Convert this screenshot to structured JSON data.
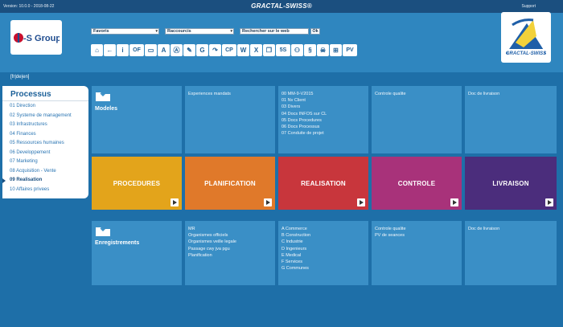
{
  "topbar": {
    "version": "Version: 10.0.0 - 2018-08-22",
    "brand": "GRACTAL-SWISS®",
    "support": "Support"
  },
  "header": {
    "logo_left": "G-S Group",
    "logo_right": "GRACTAL-SWISS",
    "favoris": "Favoris",
    "raccourcis": "Raccourcis",
    "search_placeholder": "Rechercher sur le web",
    "ok_label": "Ok",
    "toolbar": [
      "home-icon",
      "back-icon",
      "info-icon",
      "OF",
      "monitor-icon",
      "A",
      "A",
      "tools-icon",
      "G",
      "refresh-icon",
      "CP",
      "W",
      "X",
      "copy-icon",
      "5S",
      "hierarchy-icon",
      "§",
      "pirate-icon",
      "org-icon",
      "PV"
    ],
    "toolbar_text": [
      "⌂",
      "←",
      "i",
      "OF",
      "▭",
      "A",
      "Ⓐ",
      "✎",
      "G",
      "↷",
      "CP",
      "W",
      "X",
      "❐",
      "5S",
      "⚇",
      "§",
      "☠",
      "⊞",
      "PV"
    ]
  },
  "languages": "[fr|de|en]",
  "sidebar": {
    "title": "Processus",
    "items": [
      {
        "label": "01 Direction"
      },
      {
        "label": "02 Systeme de management"
      },
      {
        "label": "03 Infrastructures"
      },
      {
        "label": "04 Finances"
      },
      {
        "label": "05 Ressources humaines"
      },
      {
        "label": "06 Developpement"
      },
      {
        "label": "07 Marketing"
      },
      {
        "label": "08 Acquisition - Vente"
      },
      {
        "label": "09 Realisation"
      },
      {
        "label": "10 Affaires privees"
      }
    ]
  },
  "grid": {
    "modeles_label": "Modeles",
    "enregistrements_label": "Enregistrements",
    "top": {
      "planification": [
        "Experiences mandats"
      ],
      "realisation": [
        "00 MM-9-V2015",
        "01 Nv Client",
        "03 Divers",
        "04 Docs INFOS sur CL",
        "05 Docs Procedures",
        "06 Docs Processus",
        "07 Conduite de projet"
      ],
      "controle": [
        "Controle qualite"
      ],
      "livraison": [
        "Doc de livraison"
      ]
    },
    "processes": [
      {
        "label": "PROCEDURES",
        "color": "#e3a41b"
      },
      {
        "label": "PLANIFICATION",
        "color": "#e0792a"
      },
      {
        "label": "REALISATION",
        "color": "#c8363c"
      },
      {
        "label": "CONTROLE",
        "color": "#a8327a"
      },
      {
        "label": "LIVRAISON",
        "color": "#4b2d7c"
      }
    ],
    "bottom": {
      "planification": [
        "MR",
        "Organismes officiels",
        "Organismes veille legale",
        "Passage cwy jva pgu",
        "Planification"
      ],
      "realisation": [
        "A Commerce",
        "B Construction",
        "C Industrie",
        "D Ingenieurs",
        "E Medical",
        "F Services",
        "G Communes"
      ],
      "controle": [
        "Controle qualite",
        "PV de seances"
      ],
      "livraison": [
        "Doc de livraison"
      ]
    }
  }
}
